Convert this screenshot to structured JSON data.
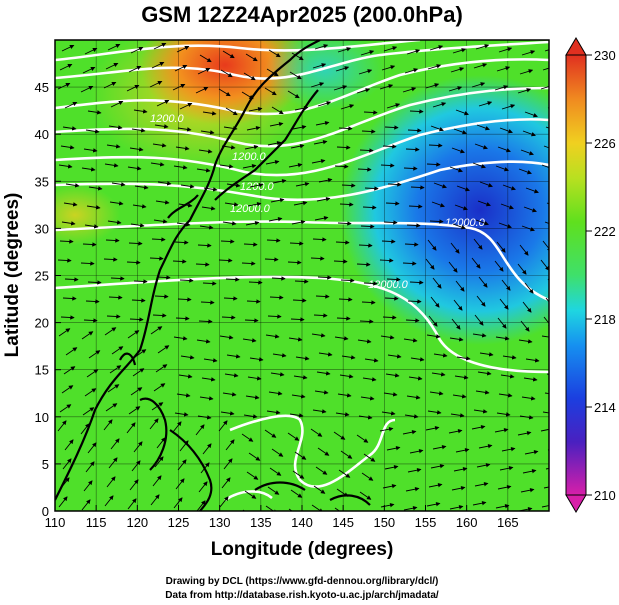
{
  "chart_data": {
    "type": "heatmap",
    "title": "GSM 12Z24Apr2025 (200.0hPa)",
    "xlabel": "Longitude (degrees)",
    "ylabel": "Latitude  (degrees)",
    "xlim": [
      110,
      170
    ],
    "ylim": [
      0,
      50
    ],
    "xticks": [
      "110",
      "115",
      "120",
      "125",
      "130",
      "135",
      "140",
      "145",
      "150",
      "155",
      "160",
      "165"
    ],
    "yticks": [
      "0",
      "5",
      "10",
      "15",
      "20",
      "25",
      "30",
      "35",
      "40",
      "45"
    ],
    "grid": true,
    "colorbar": {
      "min": 210,
      "max": 230,
      "ticks": [
        "210",
        "214",
        "218",
        "222",
        "226",
        "230"
      ],
      "colors": [
        "#d81fa9",
        "#4a20c0",
        "#1b3fe0",
        "#1690f0",
        "#1fd6e0",
        "#3fe06a",
        "#5fe01e",
        "#b8e020",
        "#f0d020",
        "#f08a20",
        "#e03020"
      ]
    },
    "contour_labels": [
      "1200.0",
      "1200.0",
      "1200.0",
      "12000.0",
      "12000.0",
      "12000.0"
    ],
    "colors": {
      "warm_max": "#e03020",
      "cool_min": "#1b2fd0",
      "contour": "#ffffff",
      "vectors": "#000000"
    }
  },
  "credits": [
    "Drawing by DCL (https://www.gfd-dennou.org/library/dcl/)",
    "Data from http://database.rish.kyoto-u.ac.jp/arch/jmadata/"
  ]
}
